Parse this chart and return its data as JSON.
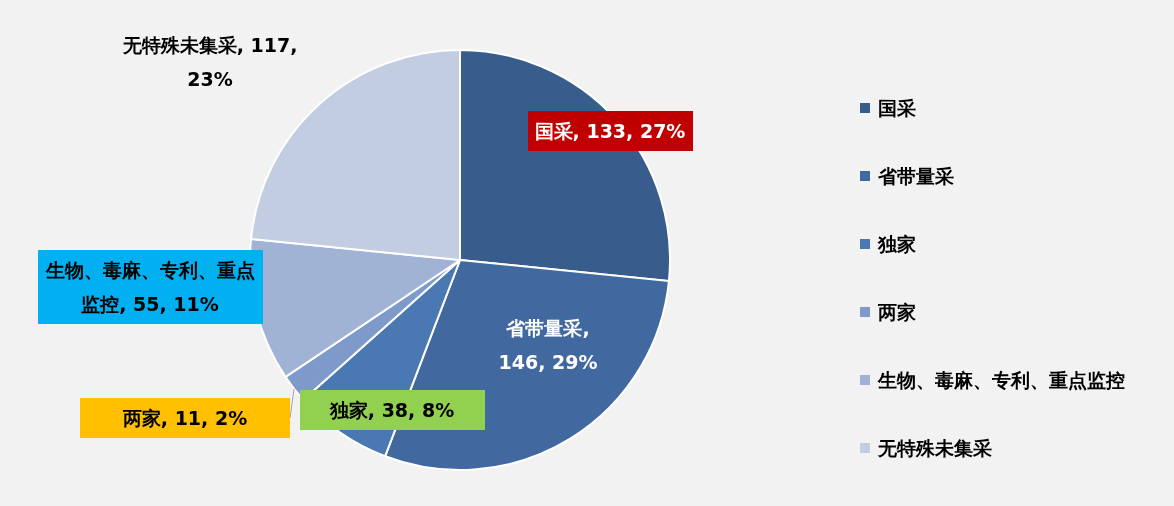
{
  "chart_data": {
    "type": "pie",
    "categories": [
      "国采",
      "省带量采",
      "独家",
      "两家",
      "生物、毒麻、专利、重点监控",
      "无特殊未集采"
    ],
    "values": [
      133,
      146,
      38,
      11,
      55,
      117
    ],
    "colors": [
      "#385c8b",
      "#41689f",
      "#4a78b2",
      "#7d9acb",
      "#a1b3d5",
      "#c3cde2"
    ],
    "value_labels": [
      "国采, 133, 27%",
      "省带量采, 146, 29%",
      "独家, 38, 8%",
      "两家, 11, 2%",
      "生物、毒麻、专利、重点监控, 55, 11%",
      "无特殊未集采, 117, 23%"
    ],
    "legend": "right"
  }
}
